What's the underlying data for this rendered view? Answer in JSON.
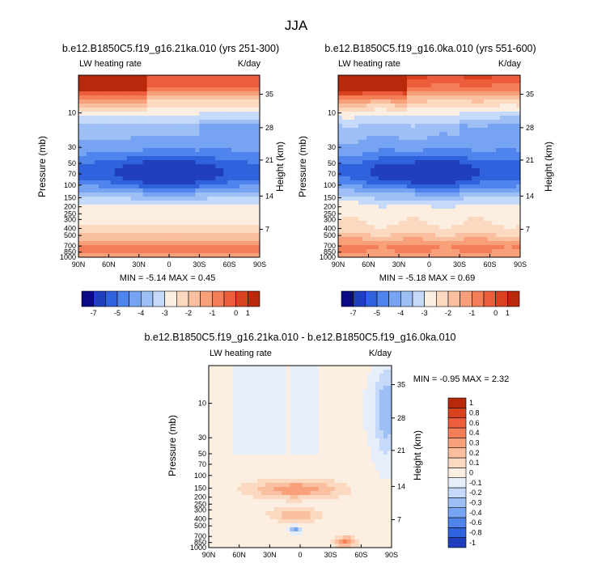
{
  "figure_title": "JJA",
  "colors": {
    "cold": [
      "#0a0a86",
      "#1f3fbd",
      "#2f62dc",
      "#4f84ec",
      "#76a3f2",
      "#9dbff6",
      "#c5dafa",
      "#e6eefb"
    ],
    "warm": [
      "#fcefe2",
      "#fbd9c0",
      "#f9bf9e",
      "#f7a07a",
      "#f37e58",
      "#ec5d3b",
      "#d8421f",
      "#b8280b",
      "#8c1208"
    ]
  },
  "chart_data": [
    {
      "type": "heatmap",
      "title": "b.e12.B1850C5.f19_g16.21ka.010 (yrs 251-300)",
      "variable_label": "LW heating rate",
      "units_label": "K/day",
      "x_tick_labels": [
        "90N",
        "60N",
        "30N",
        "0",
        "30S",
        "60S",
        "90S"
      ],
      "x_range": [
        90,
        -90
      ],
      "y_label": "Pressure (mb)",
      "y_tick_labels": [
        "10",
        "30",
        "50",
        "70",
        "100",
        "150",
        "200",
        "250",
        "300",
        "400",
        "500",
        "700",
        "850",
        "1000"
      ],
      "y_range_mb": [
        1000,
        3
      ],
      "right_label": "Height (km)",
      "right_tick_labels": [
        "35",
        "28",
        "21",
        "14",
        "7"
      ],
      "stats_text": "MIN =  -5.14   MAX =   0.45",
      "min": -5.14,
      "max": 0.45,
      "colorbar_labels": [
        "-7",
        "-5",
        "-4",
        "-3",
        "-2",
        "-1",
        "0",
        "1"
      ],
      "colorbar_levels": [
        -7,
        -6,
        -5,
        -4.5,
        -4,
        -3.5,
        -3,
        -2.5,
        -2,
        -1.5,
        -1,
        -0.5,
        0,
        0.5,
        1
      ]
    },
    {
      "type": "heatmap",
      "title": "b.e12.B1850C5.f19_g16.0ka.010 (yrs 551-600)",
      "variable_label": "LW heating rate",
      "units_label": "K/day",
      "x_tick_labels": [
        "90N",
        "60N",
        "30N",
        "0",
        "30S",
        "60S",
        "90S"
      ],
      "x_range": [
        90,
        -90
      ],
      "y_label": "Pressure (mb)",
      "y_tick_labels": [
        "10",
        "30",
        "50",
        "70",
        "100",
        "150",
        "200",
        "250",
        "300",
        "400",
        "500",
        "700",
        "850",
        "1000"
      ],
      "y_range_mb": [
        1000,
        3
      ],
      "right_label": "Height (km)",
      "right_tick_labels": [
        "35",
        "28",
        "21",
        "14",
        "7"
      ],
      "stats_text": "MIN =  -5.18   MAX =   0.69",
      "min": -5.18,
      "max": 0.69,
      "colorbar_labels": [
        "-7",
        "-5",
        "-4",
        "-3",
        "-2",
        "-1",
        "0",
        "1"
      ],
      "colorbar_levels": [
        -7,
        -6,
        -5,
        -4.5,
        -4,
        -3.5,
        -3,
        -2.5,
        -2,
        -1.5,
        -1,
        -0.5,
        0,
        0.5,
        1
      ]
    },
    {
      "type": "heatmap",
      "title": "b.e12.B1850C5.f19_g16.21ka.010 - b.e12.B1850C5.f19_g16.0ka.010",
      "variable_label": "LW heating rate",
      "units_label": "K/day",
      "x_tick_labels": [
        "90N",
        "60N",
        "30N",
        "0",
        "30S",
        "60S",
        "90S"
      ],
      "x_range": [
        90,
        -90
      ],
      "y_label": "Pressure (mb)",
      "y_tick_labels": [
        "10",
        "30",
        "50",
        "70",
        "100",
        "150",
        "200",
        "250",
        "300",
        "400",
        "500",
        "700",
        "850",
        "1000"
      ],
      "y_range_mb": [
        1000,
        3
      ],
      "right_label": "Height (km)",
      "right_tick_labels": [
        "35",
        "28",
        "21",
        "14",
        "7"
      ],
      "stats_text": "MIN =  -0.95   MAX =   2.32",
      "min": -0.95,
      "max": 2.32,
      "colorbar_labels": [
        "1",
        "0.8",
        "0.6",
        "0.4",
        "0.3",
        "0.2",
        "0.1",
        "0",
        "-0.1",
        "-0.2",
        "-0.3",
        "-0.4",
        "-0.6",
        "-0.8",
        "-1"
      ],
      "colorbar_levels": [
        -1,
        -0.8,
        -0.6,
        -0.4,
        -0.3,
        -0.2,
        -0.1,
        0,
        0.1,
        0.2,
        0.3,
        0.4,
        0.6,
        0.8,
        1
      ]
    }
  ]
}
